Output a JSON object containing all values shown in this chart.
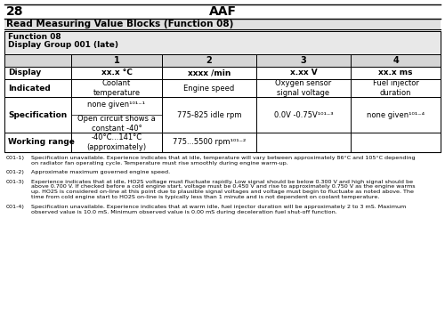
{
  "page_num": "28",
  "page_title": "AAF",
  "section_title": "Read Measuring Value Blocks (Function 08)",
  "function_label": "Function 08",
  "group_label": "Display Group 001 (late)",
  "col_headers": [
    "1",
    "2",
    "3",
    "4"
  ],
  "row_display_label": "Display",
  "row_display_vals": [
    "xx.x °C",
    "xxxx /min",
    "x.xx V",
    "xx.x ms"
  ],
  "row_indicated_label": "Indicated",
  "row_indicated_vals": [
    "Coolant\ntemperature",
    "Engine speed",
    "Oxygen sensor\nsignal voltage",
    "Fuel injector\nduration"
  ],
  "row_spec_label": "Specification",
  "spec_col1_top": "none given¹⁰¹⁻¹",
  "spec_col1_bot": "Open circuit shows a\nconstant -40°",
  "spec_col2": "775-825 idle rpm",
  "spec_col3": "0.0V -0.75V¹⁰¹⁻³",
  "spec_col4": "none given¹⁰¹⁻⁴",
  "row_working_label": "Working range",
  "working_col1": "-40°C...141°C\n(approximately)",
  "working_col2": "775...5500 rpm¹⁰¹⁻²",
  "fn1_label": "001-1)",
  "fn1_text": "Specification unavailable. Experience indicates that at idle, temperature will vary between approximately 86°C and 105°C depending\non radiator fan operating cycle. Temperature must rise smoothly during engine warm-up.",
  "fn2_label": "001-2)",
  "fn2_text": "Approximate maximum governed engine speed.",
  "fn3_label": "001-3)",
  "fn3_text": "Experience indicates that at idle, HO2S voltage must fluctuate rapidly. Low signal should be below 0.300 V and high signal should be\nabove 0.700 V. If checked before a cold engine start, voltage must be 0.450 V and rise to approximately 0.750 V as the engine warms\nup. HO2S is considered on-line at this point due to plausible signal voltages and voltage must begin to fluctuate as noted above. The\ntime from cold engine start to HO2S on-line is typically less than 1 minute and is not dependent on coolant temperature.",
  "fn4_label": "001-4)",
  "fn4_text": "Specification unavailable. Experience indicates that at warm idle, fuel injector duration will be approximately 2 to 3 mS. Maximum\nobserved value is 10.0 mS. Minimum observed value is 0.00 mS during deceleration fuel shut-off function.",
  "bg_color": "#ffffff"
}
